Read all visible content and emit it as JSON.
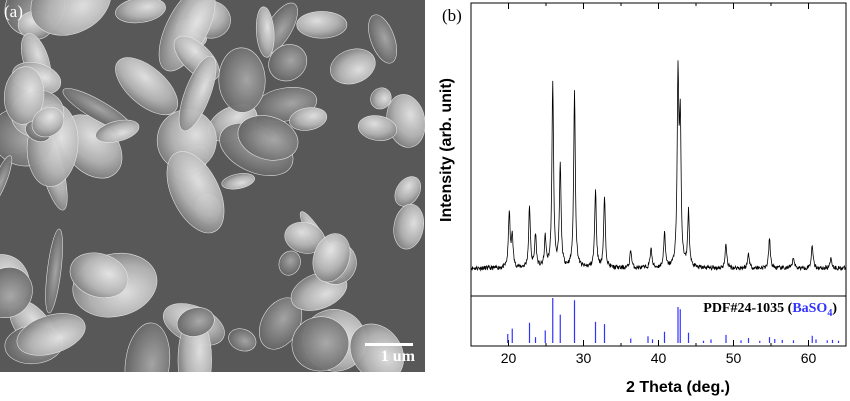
{
  "panels": {
    "a_label": "(a)",
    "b_label": "(b)",
    "scale_bar_text": "1 um"
  },
  "chart_data": {
    "type": "line",
    "title": "",
    "xlabel": "2 Theta (deg.)",
    "ylabel": "Intensity (arb. unit)",
    "xlim": [
      15,
      65
    ],
    "xticks": [
      20,
      30,
      40,
      50,
      60
    ],
    "xtick_labels": [
      "20",
      "30",
      "40",
      "50",
      "60"
    ],
    "y_ticks_shown": false,
    "series": [
      {
        "kind": "measured_pattern",
        "color": "#000000",
        "baseline": 0.02,
        "noise": 0.012,
        "peaks": [
          {
            "x": 20.1,
            "y": 0.3
          },
          {
            "x": 20.5,
            "y": 0.17
          },
          {
            "x": 22.8,
            "y": 0.33
          },
          {
            "x": 23.6,
            "y": 0.18
          },
          {
            "x": 24.9,
            "y": 0.16
          },
          {
            "x": 25.9,
            "y": 1.0
          },
          {
            "x": 26.9,
            "y": 0.55
          },
          {
            "x": 28.8,
            "y": 0.95
          },
          {
            "x": 31.6,
            "y": 0.42
          },
          {
            "x": 32.8,
            "y": 0.38
          },
          {
            "x": 36.3,
            "y": 0.1
          },
          {
            "x": 39.0,
            "y": 0.11
          },
          {
            "x": 40.8,
            "y": 0.19
          },
          {
            "x": 42.6,
            "y": 1.0
          },
          {
            "x": 42.9,
            "y": 0.75
          },
          {
            "x": 44.0,
            "y": 0.3
          },
          {
            "x": 49.0,
            "y": 0.13
          },
          {
            "x": 52.0,
            "y": 0.08
          },
          {
            "x": 54.8,
            "y": 0.16
          },
          {
            "x": 58.0,
            "y": 0.06
          },
          {
            "x": 60.5,
            "y": 0.13
          },
          {
            "x": 63.0,
            "y": 0.06
          }
        ]
      },
      {
        "kind": "reference_sticks",
        "color": "#3333ff",
        "label_prefix": "PDF#24-1035 (",
        "label_compound": "BaSO",
        "label_subscript": "4",
        "label_suffix": ")",
        "sticks": [
          {
            "x": 19.9,
            "y": 0.2
          },
          {
            "x": 20.5,
            "y": 0.32
          },
          {
            "x": 22.8,
            "y": 0.45
          },
          {
            "x": 23.6,
            "y": 0.13
          },
          {
            "x": 24.9,
            "y": 0.28
          },
          {
            "x": 25.9,
            "y": 1.0
          },
          {
            "x": 26.9,
            "y": 0.63
          },
          {
            "x": 28.8,
            "y": 0.95
          },
          {
            "x": 31.6,
            "y": 0.47
          },
          {
            "x": 32.8,
            "y": 0.42
          },
          {
            "x": 36.3,
            "y": 0.1
          },
          {
            "x": 38.6,
            "y": 0.15
          },
          {
            "x": 39.2,
            "y": 0.08
          },
          {
            "x": 40.8,
            "y": 0.25
          },
          {
            "x": 42.6,
            "y": 0.8
          },
          {
            "x": 42.9,
            "y": 0.75
          },
          {
            "x": 44.0,
            "y": 0.23
          },
          {
            "x": 46.0,
            "y": 0.05
          },
          {
            "x": 47.0,
            "y": 0.08
          },
          {
            "x": 49.0,
            "y": 0.18
          },
          {
            "x": 51.0,
            "y": 0.06
          },
          {
            "x": 52.0,
            "y": 0.11
          },
          {
            "x": 53.5,
            "y": 0.05
          },
          {
            "x": 54.8,
            "y": 0.13
          },
          {
            "x": 55.5,
            "y": 0.09
          },
          {
            "x": 56.5,
            "y": 0.07
          },
          {
            "x": 58.0,
            "y": 0.06
          },
          {
            "x": 60.5,
            "y": 0.16
          },
          {
            "x": 61.0,
            "y": 0.08
          },
          {
            "x": 62.5,
            "y": 0.06
          },
          {
            "x": 63.2,
            "y": 0.07
          },
          {
            "x": 64.0,
            "y": 0.05
          }
        ]
      }
    ]
  }
}
